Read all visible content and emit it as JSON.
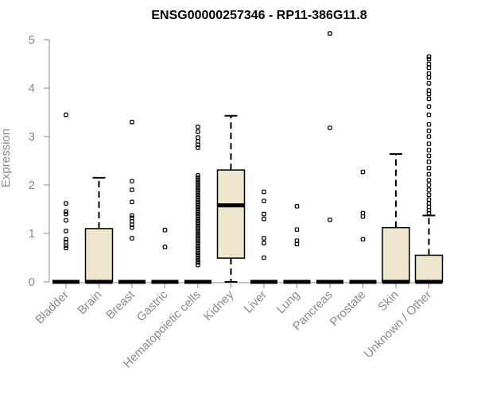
{
  "chart_data": {
    "type": "boxplot",
    "title": "ENSG00000257346 - RP11-386G11.8",
    "xlabel": "",
    "ylabel": "Expression",
    "ylim": [
      0,
      5.2
    ],
    "yticks": [
      0,
      1,
      2,
      3,
      4,
      5
    ],
    "grid": false,
    "legend": "none",
    "colors": {
      "box_fill": "#ede6cd",
      "stroke": "#000000",
      "axis": "#8a8a8a"
    },
    "categories": [
      "Bladder",
      "Brain",
      "Breast",
      "Gastric",
      "Hematopoietic cells",
      "Kidney",
      "Liver",
      "Lung",
      "Pancreas",
      "Prostate",
      "Skin",
      "Unknown / Other"
    ],
    "boxes": [
      {
        "category": "Bladder",
        "q1": 0,
        "median": 0,
        "q3": 0,
        "whisker_low": 0,
        "whisker_high": 0,
        "outliers": [
          3.45,
          1.62,
          1.45,
          1.4,
          1.27,
          1.05,
          0.88,
          0.82,
          0.75,
          0.7
        ]
      },
      {
        "category": "Brain",
        "q1": 0,
        "median": 0,
        "q3": 1.1,
        "whisker_low": 0,
        "whisker_high": 2.15,
        "outliers": []
      },
      {
        "category": "Breast",
        "q1": 0,
        "median": 0,
        "q3": 0,
        "whisker_low": 0,
        "whisker_high": 0,
        "outliers": [
          3.3,
          2.08,
          1.9,
          1.65,
          1.37,
          1.32,
          1.25,
          1.18,
          1.12,
          0.9
        ]
      },
      {
        "category": "Gastric",
        "q1": 0,
        "median": 0,
        "q3": 0,
        "whisker_low": 0,
        "whisker_high": 0,
        "outliers": [
          1.07,
          0.72
        ]
      },
      {
        "category": "Hematopoietic cells",
        "q1": 0,
        "median": 0,
        "q3": 0,
        "whisker_low": 0,
        "whisker_high": 0,
        "outliers": [
          3.2,
          3.1,
          2.98,
          2.9,
          2.83,
          2.77,
          2.2,
          2.15,
          2.1,
          2.05,
          2.0,
          1.95,
          1.9,
          1.85,
          1.8,
          1.75,
          1.7,
          1.65,
          1.6,
          1.55,
          1.5,
          1.45,
          1.4,
          1.35,
          1.3,
          1.25,
          1.2,
          1.15,
          1.1,
          1.05,
          1.0,
          0.95,
          0.9,
          0.85,
          0.8,
          0.75,
          0.7,
          0.65,
          0.6,
          0.55,
          0.5,
          0.45,
          0.4,
          0.35
        ]
      },
      {
        "category": "Kidney",
        "q1": 0.49,
        "median": 1.58,
        "q3": 2.31,
        "whisker_low": 0,
        "whisker_high": 3.43,
        "outliers": []
      },
      {
        "category": "Liver",
        "q1": 0,
        "median": 0,
        "q3": 0,
        "whisker_low": 0,
        "whisker_high": 0,
        "outliers": [
          1.86,
          1.67,
          1.4,
          1.3,
          0.9,
          0.8,
          0.5
        ]
      },
      {
        "category": "Lung",
        "q1": 0,
        "median": 0,
        "q3": 0,
        "whisker_low": 0,
        "whisker_high": 0,
        "outliers": [
          1.56,
          1.08,
          0.85,
          0.78
        ]
      },
      {
        "category": "Pancreas",
        "q1": 0,
        "median": 0,
        "q3": 0,
        "whisker_low": 0,
        "whisker_high": 0,
        "outliers": [
          5.13,
          3.18,
          1.28
        ]
      },
      {
        "category": "Prostate",
        "q1": 0,
        "median": 0,
        "q3": 0,
        "whisker_low": 0,
        "whisker_high": 0,
        "outliers": [
          2.27,
          1.42,
          1.35,
          0.88
        ]
      },
      {
        "category": "Skin",
        "q1": 0,
        "median": 0,
        "q3": 1.12,
        "whisker_low": 0,
        "whisker_high": 2.64,
        "outliers": []
      },
      {
        "category": "Unknown / Other",
        "q1": 0,
        "median": 0,
        "q3": 0.55,
        "whisker_low": 0,
        "whisker_high": 1.37,
        "outliers": [
          4.65,
          4.6,
          4.5,
          4.42,
          4.3,
          4.22,
          4.1,
          3.95,
          3.88,
          3.78,
          3.62,
          3.45,
          3.25,
          3.12,
          3.0,
          2.85,
          2.72,
          2.6,
          2.48,
          2.35,
          2.22,
          2.1,
          2.0,
          1.9,
          1.8,
          1.7,
          1.62,
          1.55,
          1.48,
          1.42
        ]
      }
    ]
  }
}
